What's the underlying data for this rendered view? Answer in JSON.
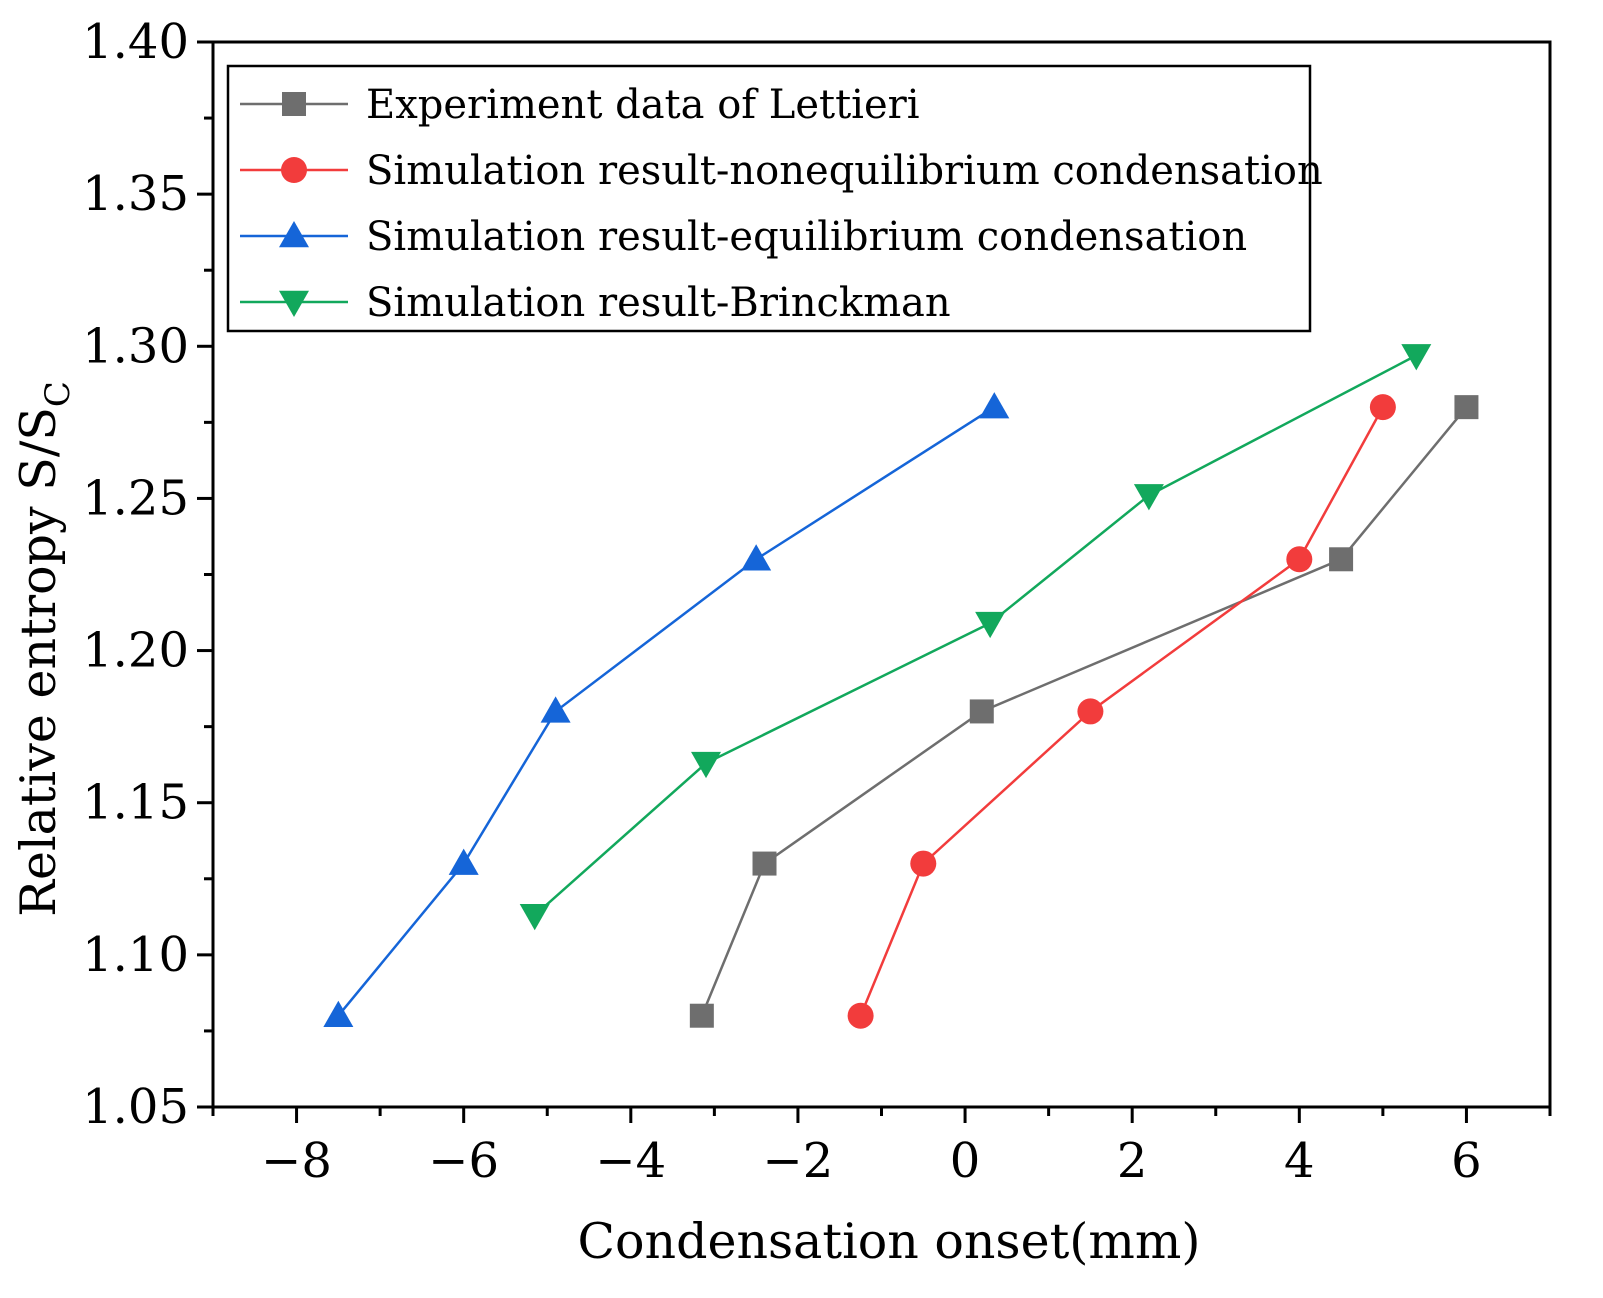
{
  "chart_data": {
    "type": "line",
    "xlabel": "Condensation onset(mm)",
    "ylabel": "Relative entropy S/S",
    "ylabel_subscript": "C",
    "xlim": [
      -9,
      7
    ],
    "ylim": [
      1.05,
      1.4
    ],
    "xticks": [
      -8,
      -6,
      -4,
      -2,
      0,
      2,
      4,
      6
    ],
    "xtick_labels": [
      "−8",
      "−6",
      "−4",
      "−2",
      "0",
      "2",
      "4",
      "6"
    ],
    "yticks": [
      1.05,
      1.1,
      1.15,
      1.2,
      1.25,
      1.3,
      1.35,
      1.4
    ],
    "ytick_labels": [
      "1.05",
      "1.10",
      "1.15",
      "1.20",
      "1.25",
      "1.30",
      "1.35",
      "1.40"
    ],
    "legend_position": "top-left",
    "grid": false,
    "series": [
      {
        "name": "Experiment data of Lettieri",
        "color": "#6e6e6e",
        "marker": "square",
        "x": [
          -3.15,
          -2.4,
          0.2,
          4.5,
          6.0
        ],
        "y": [
          1.08,
          1.13,
          1.18,
          1.23,
          1.28
        ]
      },
      {
        "name": "Simulation result-nonequilibrium condensation",
        "color": "#f23c3c",
        "marker": "circle",
        "x": [
          -1.25,
          -0.5,
          1.5,
          4.0,
          5.0
        ],
        "y": [
          1.08,
          1.13,
          1.18,
          1.23,
          1.28
        ]
      },
      {
        "name": "Simulation result-equilibrium condensation",
        "color": "#1565d8",
        "marker": "triangle-up",
        "x": [
          -7.5,
          -6.0,
          -4.9,
          -2.5,
          0.35
        ],
        "y": [
          1.08,
          1.13,
          1.18,
          1.23,
          1.28
        ]
      },
      {
        "name": "Simulation result-Brinckman",
        "color": "#12a85c",
        "marker": "triangle-down",
        "x": [
          -5.15,
          -3.1,
          0.3,
          2.2,
          5.4
        ],
        "y": [
          1.113,
          1.163,
          1.209,
          1.251,
          1.297
        ]
      }
    ]
  }
}
